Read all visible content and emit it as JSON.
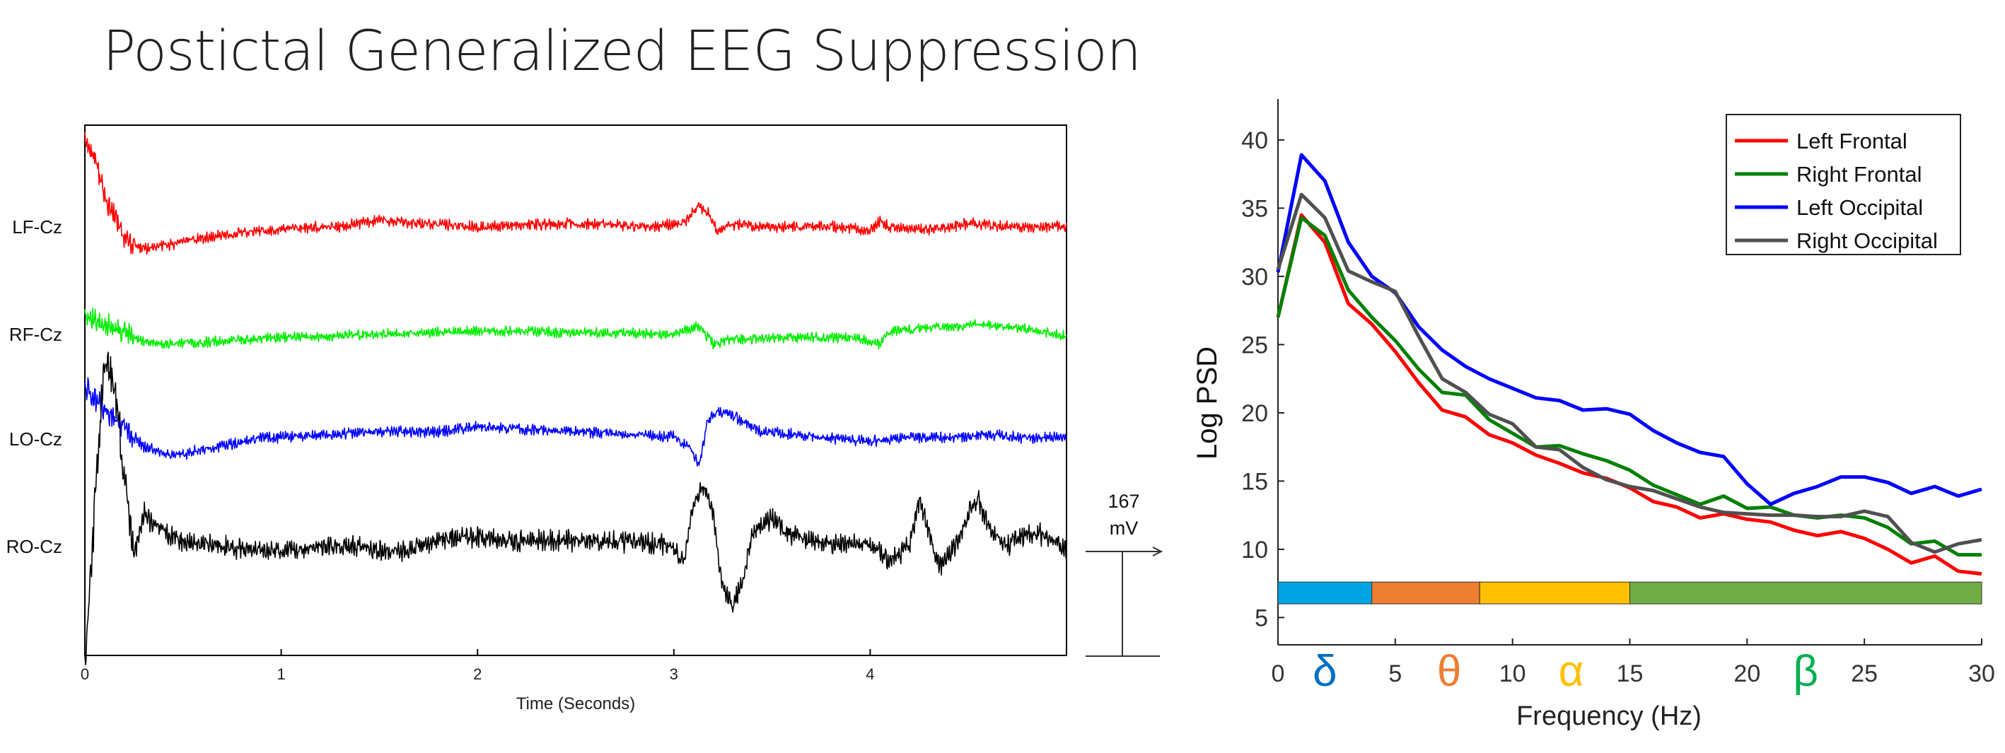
{
  "slide": {
    "title": "Postictal Generalized EEG Suppression"
  },
  "chart_data": [
    {
      "type": "line",
      "title": "",
      "xlabel": "Time (Seconds)",
      "ylabel": "",
      "xlim": [
        0,
        5
      ],
      "x_ticks": [
        "0",
        "1",
        "2",
        "3",
        "4"
      ],
      "scale_bar": {
        "value_label": "167",
        "unit_label": "mV"
      },
      "series": [
        {
          "name": "LF-Cz",
          "color": "#ff0000",
          "noise": 2.4,
          "points": [
            [
              0,
              -55
            ],
            [
              0.03,
              -50
            ],
            [
              0.07,
              -35
            ],
            [
              0.12,
              -15
            ],
            [
              0.2,
              5
            ],
            [
              0.3,
              12
            ],
            [
              0.4,
              10
            ],
            [
              0.55,
              6
            ],
            [
              0.8,
              2
            ],
            [
              1.0,
              -1
            ],
            [
              1.3,
              -2
            ],
            [
              1.5,
              -6
            ],
            [
              1.7,
              -4
            ],
            [
              2.0,
              -2
            ],
            [
              2.5,
              -4
            ],
            [
              2.9,
              -2
            ],
            [
              3.05,
              -4
            ],
            [
              3.12,
              -14
            ],
            [
              3.18,
              -10
            ],
            [
              3.22,
              1
            ],
            [
              3.3,
              -3
            ],
            [
              3.5,
              -2
            ],
            [
              3.8,
              -2
            ],
            [
              4.0,
              0
            ],
            [
              4.05,
              -5
            ],
            [
              4.1,
              -2
            ],
            [
              4.3,
              0
            ],
            [
              4.5,
              -4
            ],
            [
              4.7,
              -2
            ],
            [
              5.0,
              -2
            ]
          ]
        },
        {
          "name": "RF-Cz",
          "color": "#00ee00",
          "noise": 2.2,
          "points": [
            [
              0,
              -14
            ],
            [
              0.05,
              -10
            ],
            [
              0.1,
              -8
            ],
            [
              0.2,
              -2
            ],
            [
              0.3,
              3
            ],
            [
              0.4,
              5
            ],
            [
              0.6,
              4
            ],
            [
              1.0,
              1
            ],
            [
              1.5,
              -1
            ],
            [
              2.0,
              -3
            ],
            [
              2.5,
              -2
            ],
            [
              3.0,
              -1
            ],
            [
              3.12,
              -6
            ],
            [
              3.16,
              -1
            ],
            [
              3.2,
              5
            ],
            [
              3.3,
              2
            ],
            [
              3.6,
              1
            ],
            [
              3.9,
              1
            ],
            [
              4.05,
              5
            ],
            [
              4.1,
              -3
            ],
            [
              4.3,
              -5
            ],
            [
              4.6,
              -7
            ],
            [
              4.8,
              -4
            ],
            [
              5.0,
              0
            ]
          ]
        },
        {
          "name": "LO-Cz",
          "color": "#0000ff",
          "noise": 2.4,
          "points": [
            [
              0,
              -33
            ],
            [
              0.04,
              -28
            ],
            [
              0.1,
              -18
            ],
            [
              0.2,
              -8
            ],
            [
              0.3,
              4
            ],
            [
              0.45,
              10
            ],
            [
              0.6,
              6
            ],
            [
              0.9,
              -1
            ],
            [
              1.2,
              -3
            ],
            [
              1.5,
              -5
            ],
            [
              1.8,
              -5
            ],
            [
              2.0,
              -8
            ],
            [
              2.3,
              -6
            ],
            [
              2.7,
              -4
            ],
            [
              3.0,
              -2
            ],
            [
              3.08,
              5
            ],
            [
              3.13,
              15
            ],
            [
              3.17,
              -10
            ],
            [
              3.22,
              -18
            ],
            [
              3.3,
              -15
            ],
            [
              3.45,
              -5
            ],
            [
              3.7,
              -2
            ],
            [
              4.0,
              1
            ],
            [
              4.2,
              -2
            ],
            [
              4.4,
              -1
            ],
            [
              4.6,
              -3
            ],
            [
              4.8,
              -1
            ],
            [
              5.0,
              -2
            ]
          ]
        },
        {
          "name": "RO-Cz",
          "color": "#000000",
          "noise": 4.6,
          "points": [
            [
              0,
              75
            ],
            [
              0.05,
              -25
            ],
            [
              0.1,
              -115
            ],
            [
              0.15,
              -105
            ],
            [
              0.2,
              -45
            ],
            [
              0.25,
              4
            ],
            [
              0.3,
              -22
            ],
            [
              0.35,
              -14
            ],
            [
              0.5,
              -4
            ],
            [
              0.8,
              0
            ],
            [
              1.0,
              2
            ],
            [
              1.3,
              -2
            ],
            [
              1.6,
              2
            ],
            [
              1.9,
              -8
            ],
            [
              2.2,
              -5
            ],
            [
              2.6,
              -5
            ],
            [
              2.9,
              -3
            ],
            [
              3.0,
              -1
            ],
            [
              3.05,
              10
            ],
            [
              3.1,
              -28
            ],
            [
              3.15,
              -40
            ],
            [
              3.2,
              -20
            ],
            [
              3.25,
              25
            ],
            [
              3.3,
              35
            ],
            [
              3.35,
              20
            ],
            [
              3.4,
              -10
            ],
            [
              3.5,
              -18
            ],
            [
              3.6,
              -8
            ],
            [
              3.8,
              -2
            ],
            [
              4.0,
              -3
            ],
            [
              4.1,
              8
            ],
            [
              4.2,
              -2
            ],
            [
              4.25,
              -30
            ],
            [
              4.3,
              -10
            ],
            [
              4.35,
              12
            ],
            [
              4.45,
              -5
            ],
            [
              4.5,
              -22
            ],
            [
              4.55,
              -30
            ],
            [
              4.62,
              -10
            ],
            [
              4.7,
              -2
            ],
            [
              4.8,
              -10
            ],
            [
              4.9,
              -8
            ],
            [
              5.0,
              0
            ]
          ]
        }
      ]
    },
    {
      "type": "line",
      "title": "",
      "xlabel": "Frequency (Hz)",
      "ylabel": "Log PSD",
      "xlim": [
        0,
        30
      ],
      "ylim": [
        3,
        43
      ],
      "x_ticks": [
        "0",
        "5",
        "10",
        "15",
        "20",
        "25",
        "30"
      ],
      "y_ticks": [
        "5",
        "10",
        "15",
        "20",
        "25",
        "30",
        "35",
        "40"
      ],
      "legend": {
        "position": "top-right"
      },
      "bands": [
        {
          "label": "δ",
          "start": 0,
          "end": 4,
          "color": "#00a5e6",
          "label_color": "#0070c0"
        },
        {
          "label": "θ",
          "start": 4,
          "end": 8.6,
          "color": "#ed7d31",
          "label_color": "#ed7d31"
        },
        {
          "label": "α",
          "start": 8.6,
          "end": 15,
          "color": "#ffc000",
          "label_color": "#ffc000"
        },
        {
          "label": "β",
          "start": 15,
          "end": 30,
          "color": "#70ad47",
          "label_color": "#00b050"
        }
      ],
      "band_y": [
        6,
        7.6
      ],
      "band_label_x": [
        2,
        7.3,
        12.5,
        22.5
      ],
      "x": [
        0,
        1,
        2,
        3,
        4,
        5,
        6,
        7,
        8,
        9,
        10,
        11,
        12,
        13,
        14,
        15,
        16,
        17,
        18,
        19,
        20,
        21,
        22,
        23,
        24,
        25,
        26,
        27,
        28,
        29,
        30
      ],
      "series": [
        {
          "name": "Left Frontal",
          "color": "#ff0000",
          "values": [
            27,
            34.5,
            32.5,
            28,
            26.5,
            24.5,
            22.2,
            20.2,
            19.7,
            18.4,
            17.8,
            16.9,
            16.3,
            15.6,
            15.2,
            14.5,
            13.5,
            13.1,
            12.3,
            12.6,
            12.2,
            12,
            11.4,
            11,
            11.3,
            10.8,
            10,
            9,
            9.5,
            8.4,
            8.2
          ]
        },
        {
          "name": "Right Frontal",
          "color": "#008000",
          "values": [
            27,
            34.3,
            33,
            29,
            27,
            25.3,
            23.2,
            21.5,
            21.3,
            19.5,
            18.5,
            17.5,
            17.6,
            17,
            16.5,
            15.8,
            14.7,
            14,
            13.3,
            13.9,
            13,
            13.1,
            12.5,
            12.3,
            12.5,
            12.3,
            11.6,
            10.4,
            10.6,
            9.6,
            9.6
          ]
        },
        {
          "name": "Left Occipital",
          "color": "#0000ff",
          "values": [
            30.3,
            38.9,
            37,
            32.5,
            30,
            28.8,
            26.3,
            24.6,
            23.4,
            22.5,
            21.8,
            21.1,
            20.9,
            20.2,
            20.3,
            19.9,
            18.7,
            17.8,
            17.1,
            16.8,
            14.8,
            13.3,
            14.1,
            14.6,
            15.3,
            15.3,
            14.9,
            14.1,
            14.6,
            13.9,
            14.4
          ]
        },
        {
          "name": "Right Occipital",
          "color": "#505050",
          "values": [
            30.5,
            36,
            34.3,
            30.4,
            29.6,
            28.9,
            25.6,
            22.5,
            21.5,
            19.9,
            19.2,
            17.5,
            17.3,
            16,
            15.1,
            14.6,
            14.3,
            13.7,
            13.1,
            12.7,
            12.6,
            12.5,
            12.5,
            12.4,
            12.4,
            12.8,
            12.4,
            10.5,
            9.8,
            10.4,
            10.7
          ]
        }
      ]
    }
  ]
}
